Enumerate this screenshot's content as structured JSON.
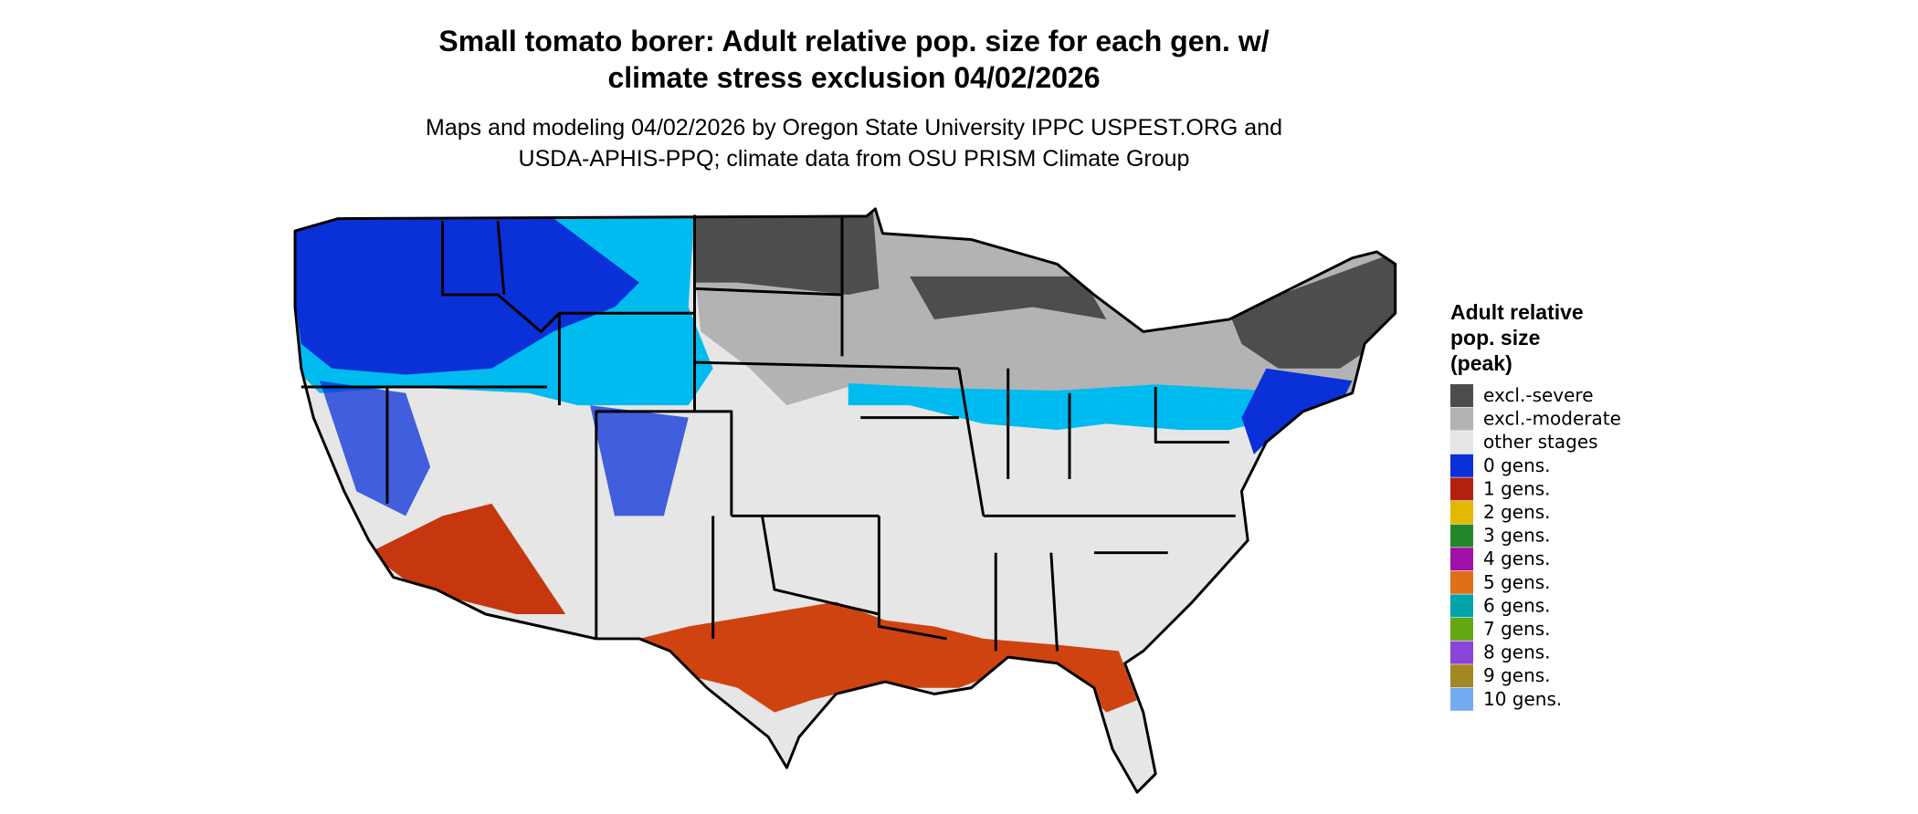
{
  "header": {
    "title": [
      "Small tomato borer: Adult relative pop. size for each gen. w/",
      "climate stress exclusion 04/02/2026"
    ],
    "subtitle": [
      "Maps and modeling 04/02/2026 by Oregon State University IPPC USPEST.ORG and",
      "USDA-APHIS-PPQ; climate data from OSU PRISM Climate Group"
    ]
  },
  "legend": {
    "title": [
      "Adult relative",
      "pop. size",
      "(peak)"
    ],
    "items": [
      {
        "label": "excl.-severe",
        "color": "#4d4d4d"
      },
      {
        "label": "excl.-moderate",
        "color": "#b3b3b3"
      },
      {
        "label": "other stages",
        "color": "#e6e6e6"
      },
      {
        "label": "0 gens.",
        "color": "#0a30d8"
      },
      {
        "label": "1 gens.",
        "color": "#b2210f"
      },
      {
        "label": "2 gens.",
        "color": "#e3b800"
      },
      {
        "label": "3 gens.",
        "color": "#23872a"
      },
      {
        "label": "4 gens.",
        "color": "#a010a8"
      },
      {
        "label": "5 gens.",
        "color": "#e07018"
      },
      {
        "label": "6 gens.",
        "color": "#00a3a8"
      },
      {
        "label": "7 gens.",
        "color": "#64a814"
      },
      {
        "label": "8 gens.",
        "color": "#8a44d8"
      },
      {
        "label": "9 gens.",
        "color": "#a28822"
      },
      {
        "label": "10 gens.",
        "color": "#74aaf0"
      }
    ]
  }
}
